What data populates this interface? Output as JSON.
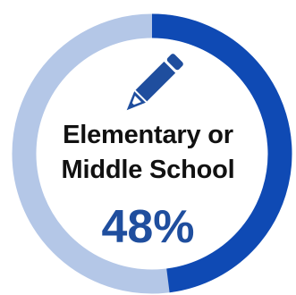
{
  "chart_data": {
    "type": "pie",
    "label_lines": [
      "Elementary or",
      "Middle School"
    ],
    "value_label": "48%",
    "values": [
      48,
      52
    ],
    "colors": {
      "filled": "#0F4AB4",
      "remaining": "#B4C7E7",
      "percent_text": "#1F4E9E"
    }
  },
  "icons": {
    "center_icon": "pencil-icon"
  }
}
